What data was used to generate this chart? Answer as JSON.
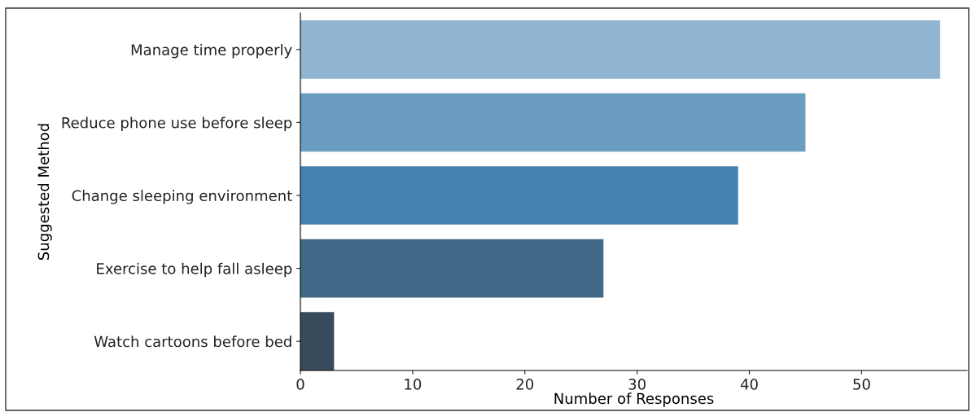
{
  "chart_data": {
    "type": "bar",
    "orientation": "horizontal",
    "xlabel": "Number of Responses",
    "ylabel": "Suggested Method",
    "categories": [
      "Manage time properly",
      "Reduce phone use before sleep",
      "Change sleeping environment",
      "Exercise to help fall asleep",
      "Watch cartoons before bed"
    ],
    "values": [
      57,
      45,
      39,
      27,
      3
    ],
    "colors": [
      "#91b5d0",
      "#6b9dc1",
      "#4682b0",
      "#41698a",
      "#384b5c"
    ],
    "xlim": [
      0,
      59.4
    ],
    "xticks": [
      0,
      10,
      20,
      30,
      40,
      50
    ],
    "grid": false
  }
}
